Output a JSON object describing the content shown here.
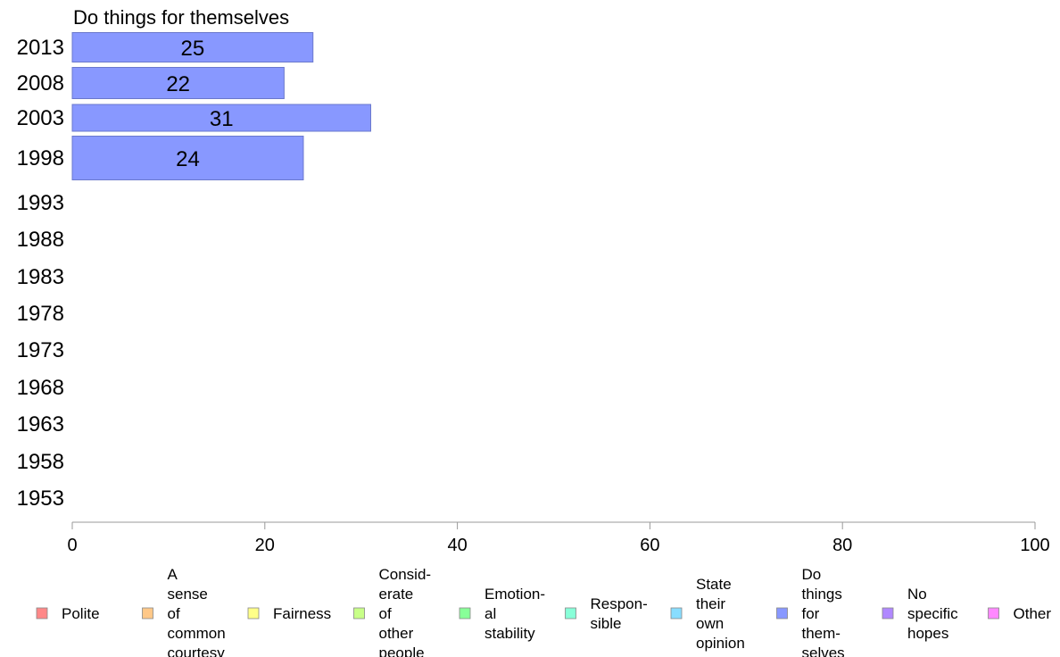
{
  "chart_data": {
    "type": "bar",
    "orientation": "horizontal",
    "title": "Do things for themselves",
    "xlabel": "",
    "ylabel": "",
    "categories": [
      "2013",
      "2008",
      "2003",
      "1998",
      "1993",
      "1988",
      "1983",
      "1978",
      "1973",
      "1968",
      "1963",
      "1958",
      "1953"
    ],
    "series": [
      {
        "name": "Do things for themselves",
        "color": "#8898ff",
        "values": [
          25,
          22,
          31,
          24,
          null,
          null,
          null,
          null,
          null,
          null,
          null,
          null,
          null
        ]
      }
    ],
    "bar_labels": [
      "25",
      "22",
      "31",
      "24"
    ],
    "xlim": [
      0,
      100
    ],
    "xticks": [
      0,
      20,
      40,
      60,
      80,
      100
    ],
    "grid": false,
    "legend_position": "bottom",
    "legend": [
      {
        "label": "Polite",
        "color": "#ff8888"
      },
      {
        "label": "A sense of common courtesy",
        "color": "#ffc888"
      },
      {
        "label": "Fairness",
        "color": "#ffff88"
      },
      {
        "label": "Consid- erate of other people",
        "color": "#c8ff88"
      },
      {
        "label": "Emotion- al stability",
        "color": "#88ff98"
      },
      {
        "label": "Respon- sible",
        "color": "#88ffd8"
      },
      {
        "label": "State their own opinion",
        "color": "#88ddff"
      },
      {
        "label": "Do things for them- selves",
        "color": "#8898ff"
      },
      {
        "label": "No specific hopes",
        "color": "#b088ff"
      },
      {
        "label": "Other",
        "color": "#ff88ff"
      }
    ]
  }
}
